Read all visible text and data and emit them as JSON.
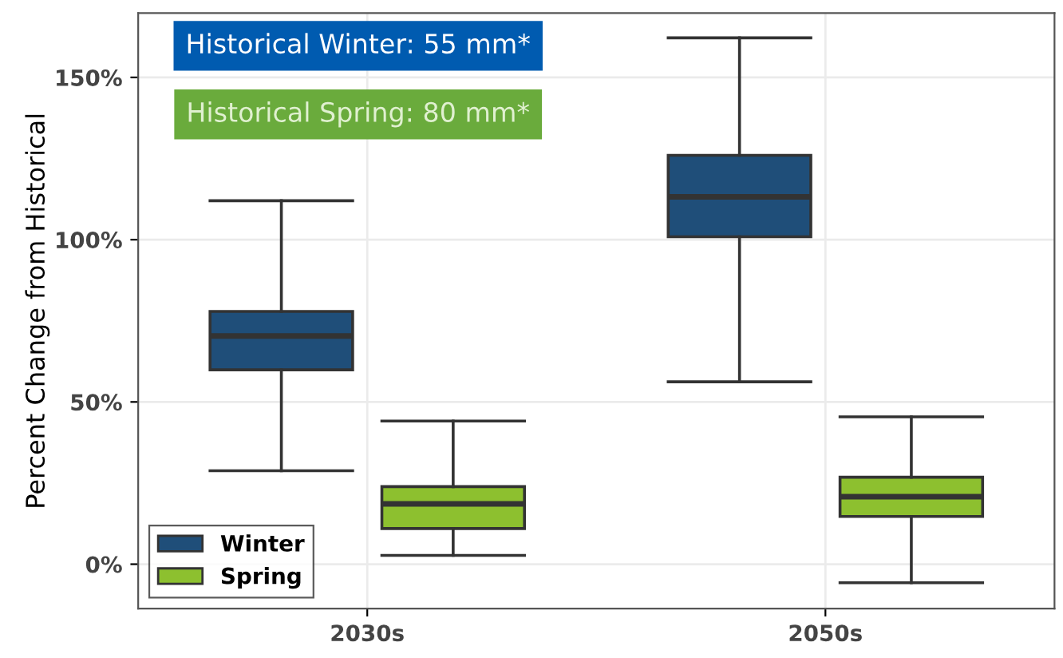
{
  "chart_data": {
    "type": "box",
    "ylabel": "Percent Change from Historical",
    "categories": [
      "2030s",
      "2050s"
    ],
    "series": [
      {
        "name": "Winter",
        "color": "#1f4e79",
        "boxes": [
          {
            "low": 28.8,
            "q1": 59.9,
            "median": 70.3,
            "q3": 77.9,
            "high": 112
          },
          {
            "low": 56.2,
            "q1": 100.9,
            "median": 113.2,
            "q3": 126,
            "high": 162.2
          }
        ]
      },
      {
        "name": "Spring",
        "color": "#8dc02f",
        "boxes": [
          {
            "low": 2.7,
            "q1": 11.0,
            "median": 18.6,
            "q3": 23.9,
            "high": 44.1
          },
          {
            "low": -5.7,
            "q1": 14.7,
            "median": 20.8,
            "q3": 26.8,
            "high": 45.4
          }
        ]
      }
    ],
    "ylim": [
      -13.7,
      169.8
    ],
    "yticks": [
      {
        "value": 0,
        "label": "0%"
      },
      {
        "value": 50,
        "label": "50%"
      },
      {
        "value": 100,
        "label": "100%"
      },
      {
        "value": 150,
        "label": "150%"
      }
    ],
    "annotations": [
      "Historical Winter: 55 mm*",
      "Historical Spring: 80 mm*"
    ],
    "grid": true,
    "legend": "bottom left"
  }
}
